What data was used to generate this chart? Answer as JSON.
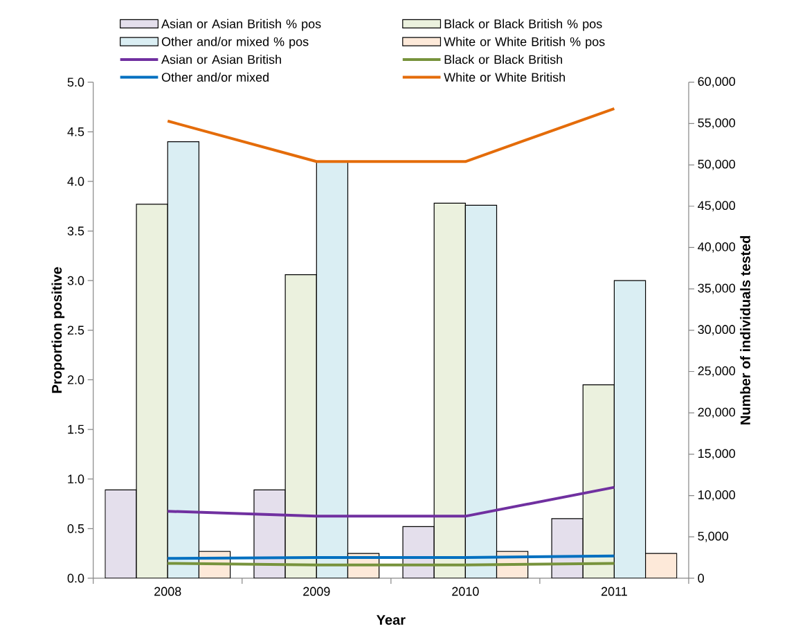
{
  "chart_data": {
    "type": "bar",
    "xlabel": "Year",
    "ylabel": "Proportion positive",
    "y2label": "Number of individuals tested",
    "categories": [
      "2008",
      "2009",
      "2010",
      "2011"
    ],
    "series": [
      {
        "name": "Asian or Asian British % pos",
        "color": "#e4dfec",
        "values": [
          0.89,
          0.89,
          0.52,
          0.6
        ]
      },
      {
        "name": "Black or Black British % pos",
        "color": "#ebf1de",
        "values": [
          3.77,
          3.06,
          3.78,
          1.95
        ]
      },
      {
        "name": "Other and/or  mixed % pos",
        "color": "#daeef3",
        "values": [
          4.4,
          4.2,
          3.76,
          3.0
        ]
      },
      {
        "name": "White or White British % pos",
        "color": "#fde9d9",
        "values": [
          0.27,
          0.25,
          0.27,
          0.25
        ]
      },
      {
        "name": "Asian or Asian British",
        "type": "line",
        "axis": "y2",
        "color": "#7030a0",
        "values": [
          8100,
          7500,
          7500,
          11000
        ]
      },
      {
        "name": "Black or Black British",
        "type": "line",
        "axis": "y2",
        "color": "#77933c",
        "values": [
          1800,
          1600,
          1600,
          1800
        ]
      },
      {
        "name": "Other and/or  mixed",
        "type": "line",
        "axis": "y2",
        "color": "#0070c0",
        "values": [
          2400,
          2500,
          2500,
          2700
        ]
      },
      {
        "name": "White or White British",
        "type": "line",
        "axis": "y2",
        "color": "#e46c0a",
        "values": [
          55300,
          50400,
          50400,
          56800
        ]
      }
    ],
    "ylim": [
      0,
      5
    ],
    "yticks": [
      {
        "value": 0,
        "label": "0.0"
      },
      0.5,
      {
        "value": 1,
        "label": "1.0"
      },
      1.5,
      {
        "value": 2,
        "label": "2.0"
      },
      2.5,
      {
        "value": 3,
        "label": "3.0"
      },
      3.5,
      {
        "value": 4,
        "label": "4.0"
      },
      4.5,
      {
        "value": 5,
        "label": "5.0"
      }
    ],
    "y2lim": [
      0,
      60000
    ],
    "y2ticks": [
      0,
      {
        "value": 5000,
        "label": "5,000"
      },
      {
        "value": 10000,
        "label": "10,000"
      },
      {
        "value": 15000,
        "label": "15,000"
      },
      {
        "value": 20000,
        "label": "20,000"
      },
      {
        "value": 25000,
        "label": "25,000"
      },
      {
        "value": 30000,
        "label": "30,000"
      },
      {
        "value": 35000,
        "label": "35,000"
      },
      {
        "value": 40000,
        "label": "40,000"
      },
      {
        "value": 45000,
        "label": "45,000"
      },
      {
        "value": 50000,
        "label": "50,000"
      },
      {
        "value": 55000,
        "label": "55,000"
      },
      {
        "value": 60000,
        "label": "60,000"
      }
    ],
    "legend": "top",
    "grid": false,
    "marker": "none",
    "line_style": "solid"
  }
}
